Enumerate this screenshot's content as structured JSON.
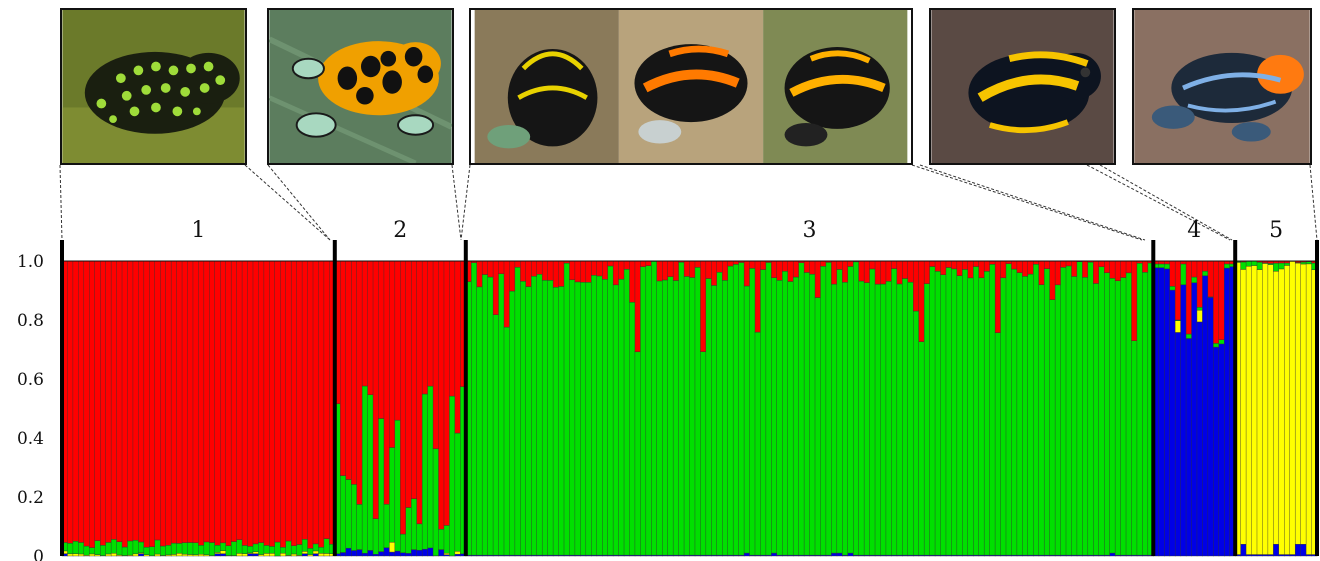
{
  "chart_data": {
    "type": "bar",
    "stacked": true,
    "title": "",
    "xlabel": "",
    "ylabel": "",
    "ylim": [
      0,
      1.0
    ],
    "yticks": [
      "0",
      "0.2",
      "0.4",
      "0.6",
      "0.8",
      "1.0"
    ],
    "grid": false,
    "legend": "none",
    "series_colors": {
      "red": "#ff0000",
      "green": "#00e000",
      "blue": "#0000e6",
      "yellow": "#ffff00"
    },
    "clusters": [
      {
        "label": "1",
        "bars": 50,
        "profile": "red-dominant"
      },
      {
        "label": "2",
        "bars": 24,
        "profile": "red-green"
      },
      {
        "label": "3",
        "bars": 126,
        "profile": "green-dominant"
      },
      {
        "label": "4",
        "bars": 15,
        "profile": "blue-dominant"
      },
      {
        "label": "5",
        "bars": 15,
        "profile": "yellow-dominant"
      }
    ]
  },
  "photos": [
    {
      "name": "photo-cluster-1",
      "icon": "frog-reticulated-green-icon"
    },
    {
      "name": "photo-cluster-2",
      "icon": "frog-orange-spotted-icon"
    },
    {
      "name": "photo-cluster-3",
      "icon": "frog-striped-triptych-icon"
    },
    {
      "name": "photo-cluster-4",
      "icon": "frog-yellow-banded-icon"
    },
    {
      "name": "photo-cluster-5",
      "icon": "frog-blue-orange-icon"
    }
  ]
}
